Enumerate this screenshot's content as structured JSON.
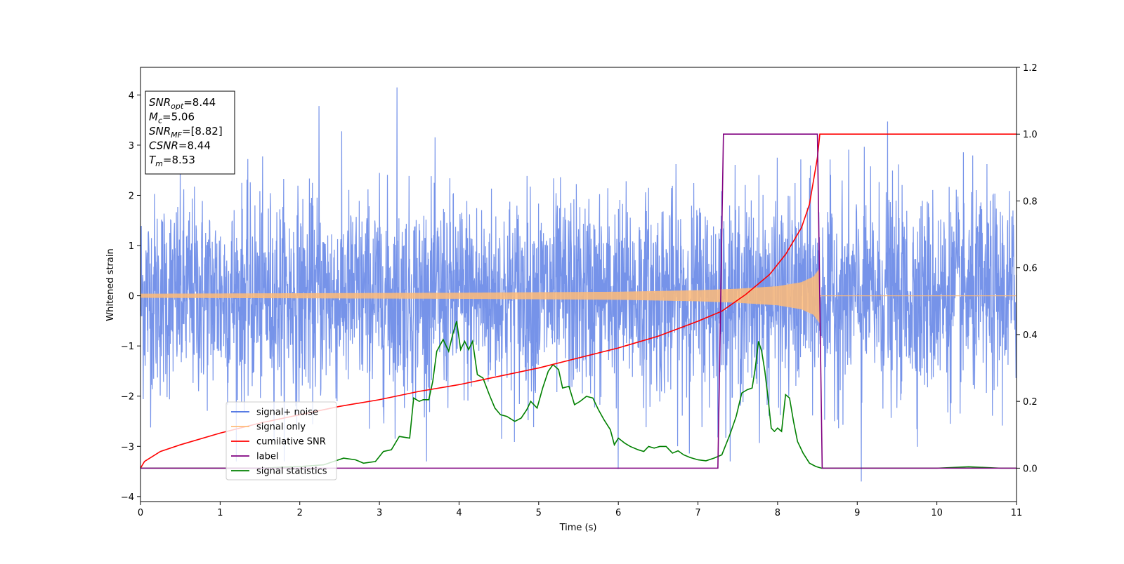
{
  "colors": {
    "noise": "#4169e1",
    "signal": "#ffbb78",
    "cumulative_snr": "#ff0000",
    "label": "#800080",
    "statistics": "#008000"
  },
  "info_box": [
    {
      "base": "SNR",
      "sub": "opt",
      "value": "=8.44"
    },
    {
      "base": "M",
      "sub": "c",
      "value": "=5.06"
    },
    {
      "base": "SNR",
      "sub": "MF",
      "value": "=[8.82]"
    },
    {
      "base": "CSNR",
      "sub": "",
      "value": "=8.44"
    },
    {
      "base": "T",
      "sub": "m",
      "value": "=8.53"
    }
  ],
  "legend": [
    {
      "label": "signal+ noise",
      "color": "#4169e1"
    },
    {
      "label": "signal only",
      "color": "#ffbb78"
    },
    {
      "label": "cumilative SNR",
      "color": "#ff0000"
    },
    {
      "label": "label",
      "color": "#800080"
    },
    {
      "label": "signal statistics",
      "color": "#008000"
    }
  ],
  "chart_data": {
    "type": "line",
    "xlabel": "Time (s)",
    "ylabel": "Whitened strain",
    "xlim": [
      0,
      11
    ],
    "ylim_left": [
      -4.1,
      4.55
    ],
    "ylim_right": [
      -0.1,
      1.2
    ],
    "x_ticks": [
      "0",
      "1",
      "2",
      "3",
      "4",
      "5",
      "6",
      "7",
      "8",
      "9",
      "10",
      "11"
    ],
    "y_ticks_left": [
      "−4",
      "−3",
      "−2",
      "−1",
      "0",
      "1",
      "2",
      "3",
      "4"
    ],
    "y_ticks_right": [
      "0.0",
      "0.2",
      "0.4",
      "0.6",
      "0.8",
      "1.0",
      "1.2"
    ],
    "legend_position": "lower-left",
    "grid": false,
    "series": [
      {
        "name": "signal+ noise",
        "axis": "left",
        "description": "dense whitened noise, std approx 1.0",
        "noise_std": 1.0,
        "notable_peaks": [
          [
            2.24,
            3.78
          ],
          [
            3.22,
            4.15
          ],
          [
            9.38,
            3.47
          ],
          [
            9.05,
            -3.7
          ],
          [
            6.0,
            -3.45
          ]
        ]
      },
      {
        "name": "signal only",
        "axis": "left",
        "description": "chirp, amplitude growing to ~0.55 at merger 8.53 s, zero afterwards",
        "envelope": {
          "x": [
            0,
            2,
            4,
            6,
            7,
            7.5,
            8,
            8.3,
            8.45,
            8.53
          ],
          "y": [
            0.04,
            0.05,
            0.06,
            0.08,
            0.11,
            0.14,
            0.19,
            0.27,
            0.38,
            0.55
          ]
        }
      },
      {
        "name": "cumilative SNR",
        "axis": "right",
        "x": [
          0.0,
          0.05,
          0.25,
          0.5,
          1.0,
          1.5,
          2.0,
          2.5,
          3.0,
          3.5,
          4.0,
          4.5,
          5.0,
          5.5,
          6.0,
          6.5,
          7.0,
          7.3,
          7.6,
          7.9,
          8.1,
          8.3,
          8.4,
          8.5,
          8.53,
          8.6,
          11.0
        ],
        "y": [
          0.0,
          0.02,
          0.05,
          0.07,
          0.105,
          0.135,
          0.16,
          0.185,
          0.205,
          0.23,
          0.25,
          0.275,
          0.3,
          0.33,
          0.36,
          0.395,
          0.44,
          0.47,
          0.52,
          0.58,
          0.64,
          0.72,
          0.79,
          0.93,
          1.0,
          1.0,
          1.0
        ]
      },
      {
        "name": "label",
        "axis": "right",
        "x": [
          0.0,
          7.25,
          7.32,
          8.5,
          8.56,
          11.0
        ],
        "y": [
          0.0,
          0.0,
          1.0,
          1.0,
          0.0,
          0.0
        ]
      },
      {
        "name": "signal statistics",
        "axis": "right",
        "x": [
          0.0,
          1.0,
          1.5,
          2.0,
          2.3,
          2.55,
          2.7,
          2.8,
          2.95,
          3.05,
          3.15,
          3.25,
          3.38,
          3.43,
          3.5,
          3.55,
          3.62,
          3.67,
          3.72,
          3.8,
          3.87,
          3.92,
          3.97,
          4.02,
          4.07,
          4.12,
          4.17,
          4.23,
          4.3,
          4.38,
          4.45,
          4.52,
          4.6,
          4.7,
          4.78,
          4.85,
          4.9,
          4.98,
          5.05,
          5.12,
          5.18,
          5.25,
          5.3,
          5.38,
          5.45,
          5.52,
          5.6,
          5.68,
          5.75,
          5.82,
          5.9,
          5.95,
          6.0,
          6.08,
          6.15,
          6.25,
          6.32,
          6.38,
          6.45,
          6.52,
          6.6,
          6.68,
          6.75,
          6.82,
          6.9,
          7.0,
          7.1,
          7.2,
          7.3,
          7.4,
          7.48,
          7.55,
          7.62,
          7.68,
          7.72,
          7.76,
          7.8,
          7.84,
          7.88,
          7.92,
          7.96,
          8.0,
          8.05,
          8.1,
          8.15,
          8.2,
          8.25,
          8.32,
          8.4,
          8.48,
          8.55,
          8.62,
          9.0,
          10.0,
          10.4,
          10.8,
          11.0
        ],
        "y": [
          0.0,
          0.0,
          0.0,
          0.005,
          0.01,
          0.03,
          0.025,
          0.015,
          0.02,
          0.05,
          0.055,
          0.095,
          0.09,
          0.21,
          0.2,
          0.205,
          0.205,
          0.26,
          0.35,
          0.385,
          0.35,
          0.4,
          0.44,
          0.355,
          0.38,
          0.355,
          0.38,
          0.28,
          0.27,
          0.22,
          0.18,
          0.16,
          0.155,
          0.14,
          0.15,
          0.175,
          0.2,
          0.18,
          0.24,
          0.29,
          0.31,
          0.295,
          0.24,
          0.245,
          0.19,
          0.2,
          0.215,
          0.21,
          0.175,
          0.145,
          0.115,
          0.07,
          0.09,
          0.075,
          0.065,
          0.055,
          0.05,
          0.065,
          0.06,
          0.065,
          0.065,
          0.045,
          0.052,
          0.04,
          0.032,
          0.025,
          0.022,
          0.03,
          0.04,
          0.1,
          0.155,
          0.225,
          0.235,
          0.24,
          0.3,
          0.38,
          0.35,
          0.29,
          0.21,
          0.12,
          0.11,
          0.12,
          0.11,
          0.22,
          0.21,
          0.14,
          0.08,
          0.045,
          0.015,
          0.005,
          0.0,
          0.0,
          0.0,
          0.0,
          0.004,
          0.0,
          0.0
        ]
      }
    ]
  }
}
